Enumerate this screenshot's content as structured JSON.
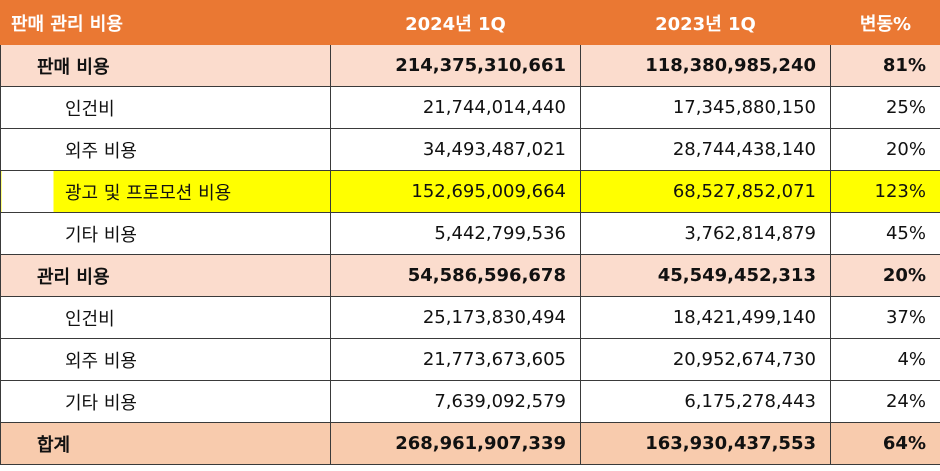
{
  "header": {
    "category": "판매 관리 비용",
    "col_2024": "2024년 1Q",
    "col_2023": "2023년 1Q",
    "col_change": "변동%"
  },
  "rows": [
    {
      "label": "판매 비용",
      "v2024": "214,375,310,661",
      "v2023": "118,380,985,240",
      "change": "81%"
    },
    {
      "label": "인건비",
      "v2024": "21,744,014,440",
      "v2023": "17,345,880,150",
      "change": "25%"
    },
    {
      "label": "외주 비용",
      "v2024": "34,493,487,021",
      "v2023": "28,744,438,140",
      "change": "20%"
    },
    {
      "label": "광고 및 프로모션 비용",
      "v2024": "152,695,009,664",
      "v2023": "68,527,852,071",
      "change": "123%"
    },
    {
      "label": "기타 비용",
      "v2024": "5,442,799,536",
      "v2023": "3,762,814,879",
      "change": "45%"
    },
    {
      "label": "관리 비용",
      "v2024": "54,586,596,678",
      "v2023": "45,549,452,313",
      "change": "20%"
    },
    {
      "label": "인건비",
      "v2024": "25,173,830,494",
      "v2023": "18,421,499,140",
      "change": "37%"
    },
    {
      "label": "외주 비용",
      "v2024": "21,773,673,605",
      "v2023": "20,952,674,730",
      "change": "4%"
    },
    {
      "label": "기타 비용",
      "v2024": "7,639,092,579",
      "v2023": "6,175,278,443",
      "change": "24%"
    },
    {
      "label": "합계",
      "v2024": "268,961,907,339",
      "v2023": "163,930,437,553",
      "change": "64%"
    }
  ],
  "colors": {
    "header_bg": "#ea7833",
    "section_bg": "#fbdccd",
    "total_bg": "#f8cbad",
    "highlight_bg": "#ffff00"
  }
}
